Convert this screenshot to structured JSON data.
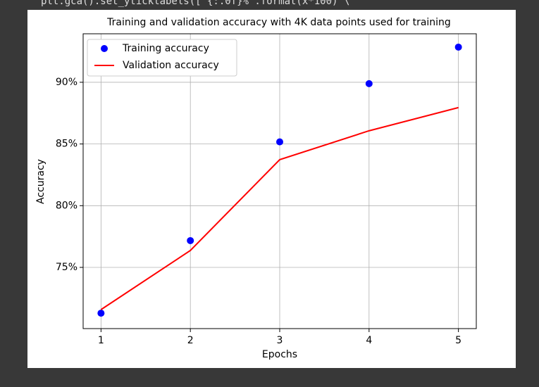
{
  "code_line": "plt.gca().set_yticklabels(['{:.0f}%'.format(x*100) \\",
  "chart_data": {
    "type": "line",
    "title": "Training and validation accuracy with 4K data points used for training",
    "x_label": "Epochs",
    "y_label": "Accuracy",
    "x": [
      1,
      2,
      3,
      4,
      5
    ],
    "series": [
      {
        "name": "Training accuracy",
        "color": "#0000ff",
        "mode": "markers",
        "values": [
          71.29,
          77.17,
          85.17,
          89.89,
          92.85
        ]
      },
      {
        "name": "Validation accuracy",
        "color": "#ff0000",
        "mode": "line",
        "values": [
          71.58,
          76.37,
          83.73,
          86.07,
          87.95
        ]
      }
    ],
    "xlim": [
      0.8,
      5.2
    ],
    "xticks": [
      1,
      2,
      3,
      4,
      5
    ],
    "ylim": [
      70.04,
      93.93
    ],
    "yticks": [
      {
        "value": 75,
        "label": "75%"
      },
      {
        "value": 80,
        "label": "80%"
      },
      {
        "value": 85,
        "label": "85%"
      },
      {
        "value": 90,
        "label": "90%"
      }
    ],
    "grid": true,
    "legend": "upper left"
  }
}
